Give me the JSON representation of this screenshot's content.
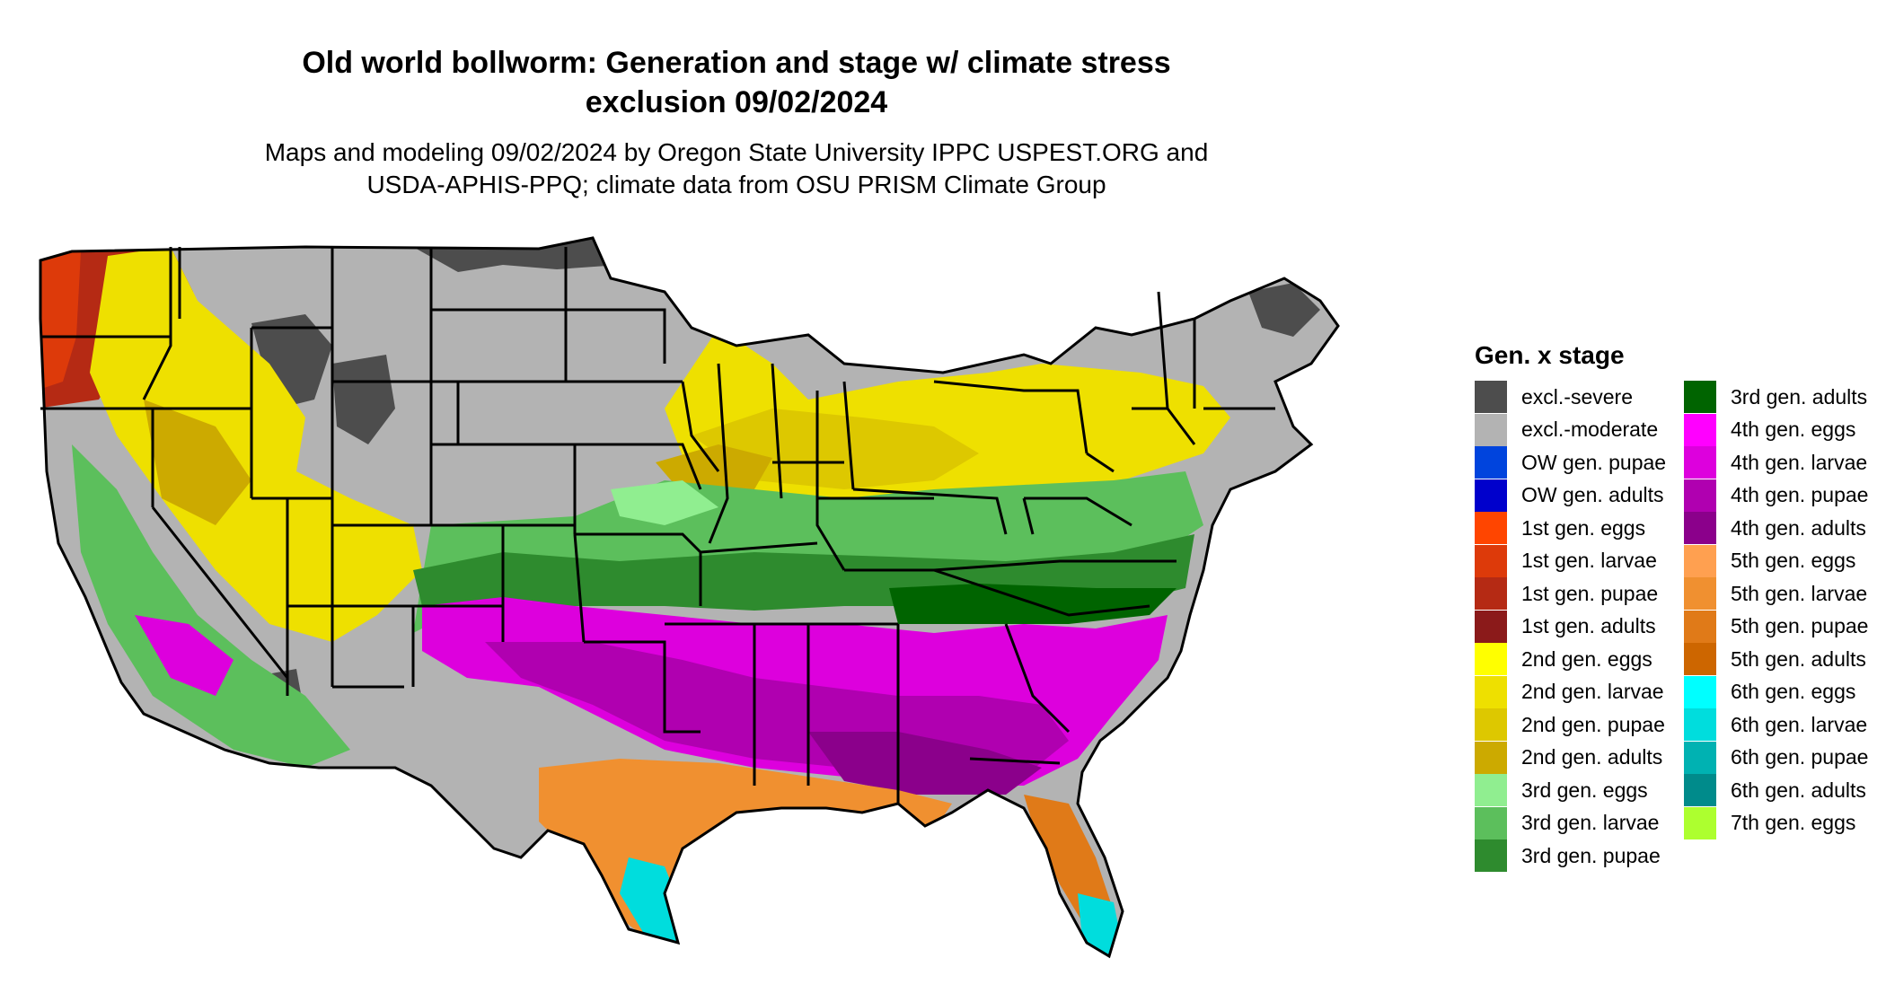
{
  "title_line1": "Old world bollworm: Generation and stage w/ climate stress",
  "title_line2": "exclusion 09/02/2024",
  "subtitle_line1": "Maps and modeling 09/02/2024 by Oregon State University IPPC USPEST.ORG and",
  "subtitle_line2": "USDA-APHIS-PPQ; climate data from OSU PRISM Climate Group",
  "legend": {
    "title": "Gen. x stage",
    "items": [
      {
        "label": "excl.-severe",
        "color": "#4d4d4d"
      },
      {
        "label": "excl.-moderate",
        "color": "#b3b3b3"
      },
      {
        "label": "OW gen. pupae",
        "color": "#0044dd"
      },
      {
        "label": "OW gen. adults",
        "color": "#0000cc"
      },
      {
        "label": "1st gen. eggs",
        "color": "#ff4500"
      },
      {
        "label": "1st gen. larvae",
        "color": "#dd3a0a"
      },
      {
        "label": "1st gen. pupae",
        "color": "#b52a14"
      },
      {
        "label": "1st gen. adults",
        "color": "#8b1a1a"
      },
      {
        "label": "2nd gen. eggs",
        "color": "#ffff00"
      },
      {
        "label": "2nd gen. larvae",
        "color": "#eee000"
      },
      {
        "label": "2nd gen. pupae",
        "color": "#ddc800"
      },
      {
        "label": "2nd gen. adults",
        "color": "#ccaa00"
      },
      {
        "label": "3rd gen. eggs",
        "color": "#90ee90"
      },
      {
        "label": "3rd gen. larvae",
        "color": "#5cbf5c"
      },
      {
        "label": "3rd gen. pupae",
        "color": "#2e8b2e"
      },
      {
        "label": "3rd gen. adults",
        "color": "#006400"
      },
      {
        "label": "4th gen. eggs",
        "color": "#ff00ff"
      },
      {
        "label": "4th gen. larvae",
        "color": "#dd00dd"
      },
      {
        "label": "4th gen. pupae",
        "color": "#b000b0"
      },
      {
        "label": "4th gen. adults",
        "color": "#8b008b"
      },
      {
        "label": "5th gen. eggs",
        "color": "#ffa050"
      },
      {
        "label": "5th gen. larvae",
        "color": "#f09030"
      },
      {
        "label": "5th gen. pupae",
        "color": "#e07a18"
      },
      {
        "label": "5th gen. adults",
        "color": "#cd6600"
      },
      {
        "label": "6th gen. eggs",
        "color": "#00ffff"
      },
      {
        "label": "6th gen. larvae",
        "color": "#00dddd"
      },
      {
        "label": "6th gen. pupae",
        "color": "#00b2b2"
      },
      {
        "label": "6th gen. adults",
        "color": "#008b8b"
      },
      {
        "label": "7th gen. eggs",
        "color": "#adff2f"
      }
    ]
  }
}
